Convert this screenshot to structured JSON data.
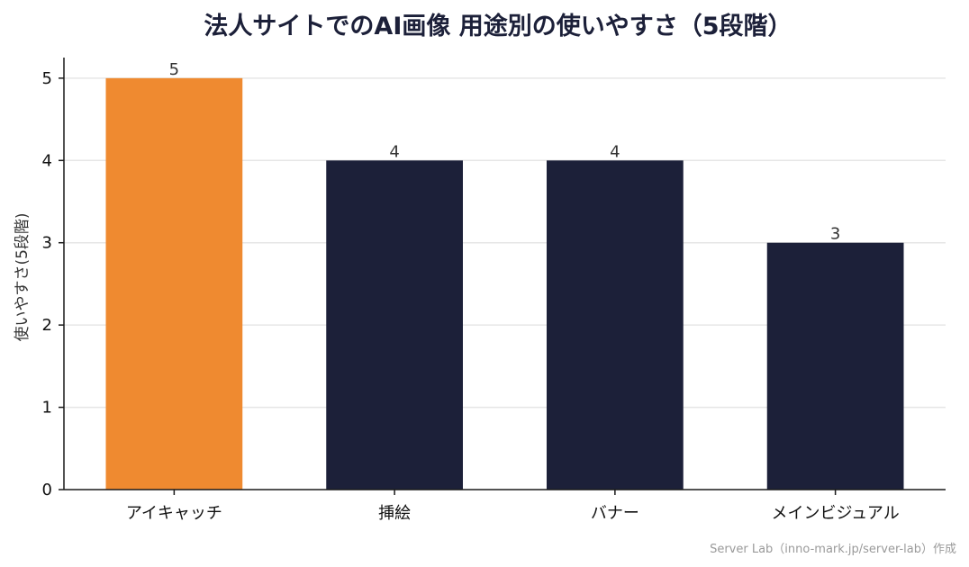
{
  "chart_data": {
    "type": "bar",
    "title": "法人サイトでのAI画像 用途別の使いやすさ（5段階）",
    "xlabel": "",
    "ylabel": "使いやすさ(5段階)",
    "categories": [
      "アイキャッチ",
      "挿絵",
      "バナー",
      "メインビジュアル"
    ],
    "values": [
      5,
      4,
      4,
      3
    ],
    "data_labels": [
      "5",
      "4",
      "4",
      "3"
    ],
    "ylim": [
      0,
      5.25
    ],
    "yticks": [
      "0",
      "1",
      "2",
      "3",
      "4",
      "5"
    ],
    "grid": true,
    "bar_colors": [
      "#ef8a30",
      "#1c2039",
      "#1c2039",
      "#1c2039"
    ]
  },
  "credit": "Server Lab（inno-mark.jp/server-lab）作成",
  "colors": {
    "accent": "#ef8a30",
    "primary": "#1c2039",
    "title": "#1c2039"
  }
}
